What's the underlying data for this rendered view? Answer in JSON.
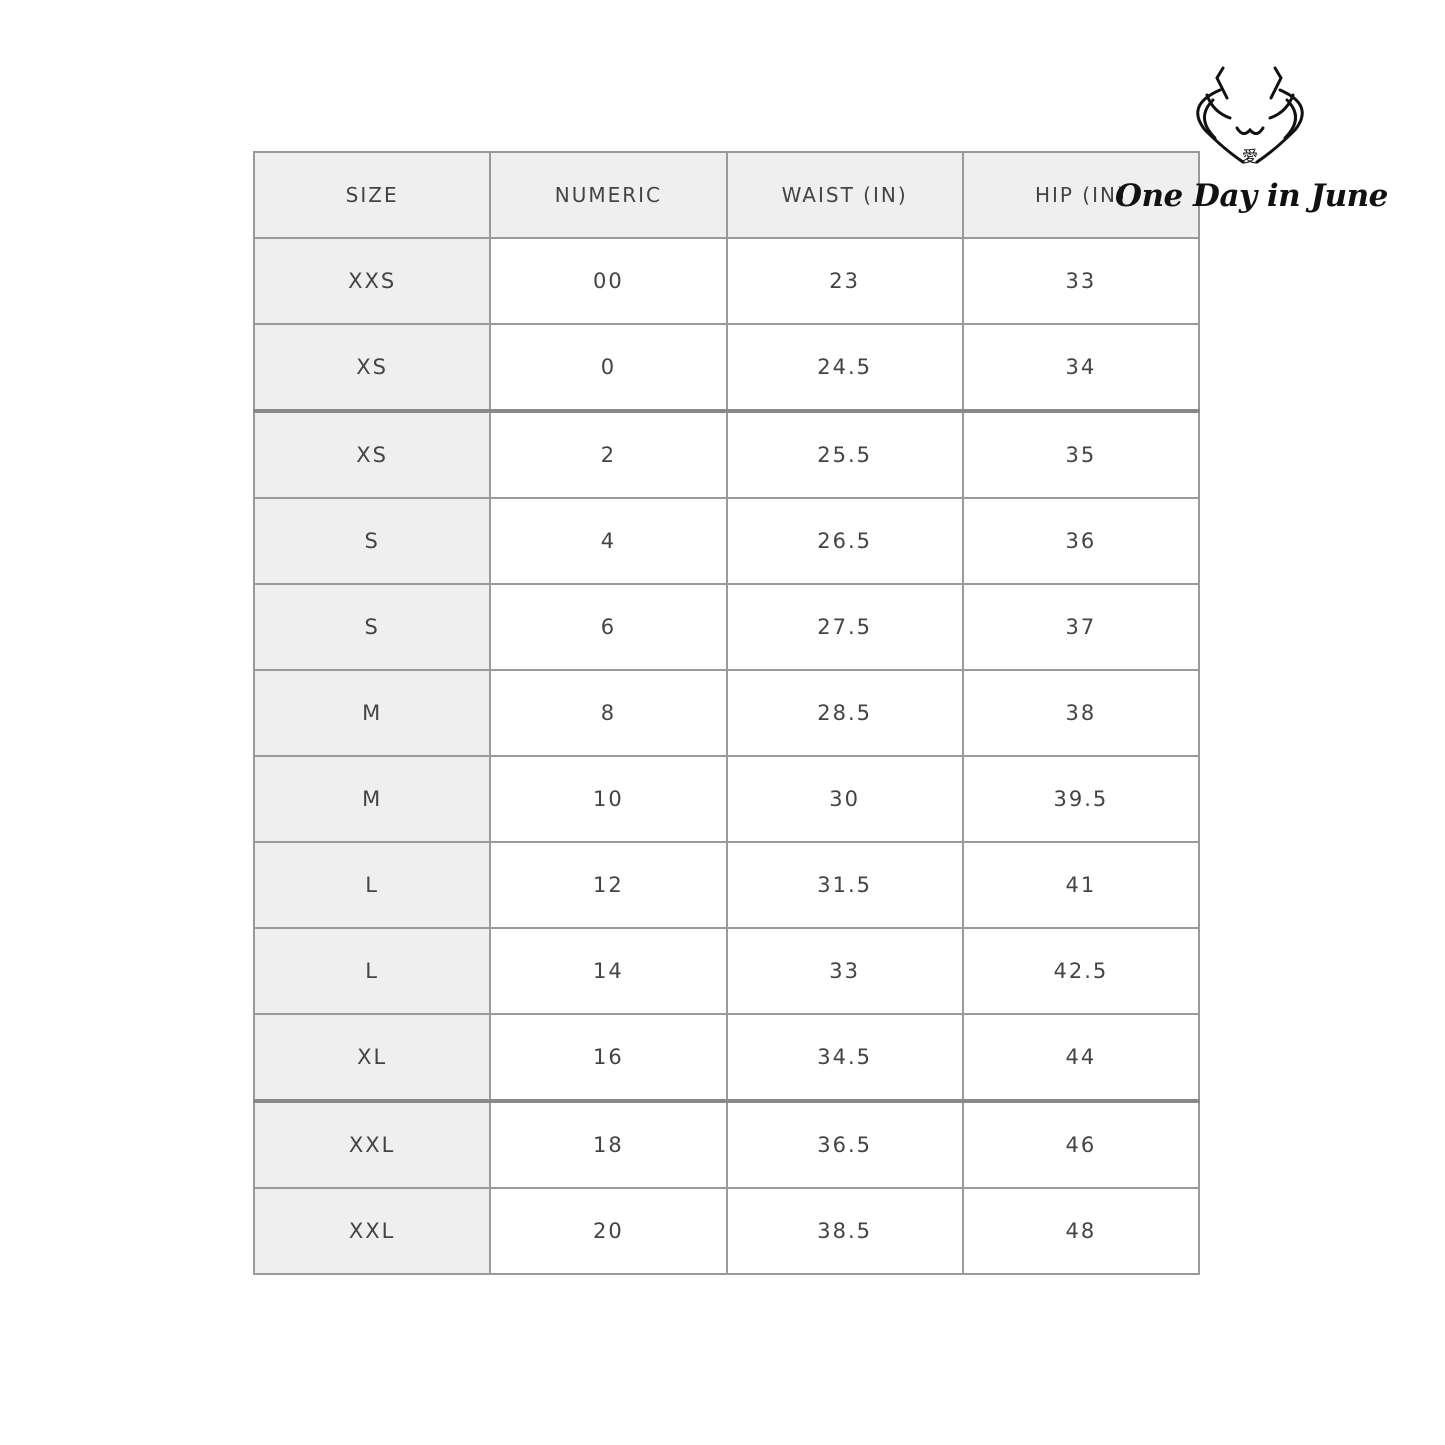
{
  "table": {
    "headers": [
      "SIZE",
      "NUMERIC",
      "WAIST (IN)",
      "HIP (IN)"
    ],
    "rows": [
      [
        "XXS",
        "00",
        "23",
        "33"
      ],
      [
        "XS",
        "0",
        "24.5",
        "34"
      ],
      [
        "XS",
        "2",
        "25.5",
        "35"
      ],
      [
        "S",
        "4",
        "26.5",
        "36"
      ],
      [
        "S",
        "6",
        "27.5",
        "37"
      ],
      [
        "M",
        "8",
        "28.5",
        "38"
      ],
      [
        "M",
        "10",
        "30",
        "39.5"
      ],
      [
        "L",
        "12",
        "31.5",
        "41"
      ],
      [
        "L",
        "14",
        "33",
        "42.5"
      ],
      [
        "XL",
        "16",
        "34.5",
        "44"
      ],
      [
        "XXL",
        "18",
        "36.5",
        "46"
      ],
      [
        "XXL",
        "20",
        "38.5",
        "48"
      ]
    ]
  },
  "logo": {
    "text": "One Day in June",
    "icon": "stylized-cat-face-logo"
  },
  "colors": {
    "header_bg": "#efefef",
    "border": "#9a9a9a",
    "text": "#444444"
  }
}
